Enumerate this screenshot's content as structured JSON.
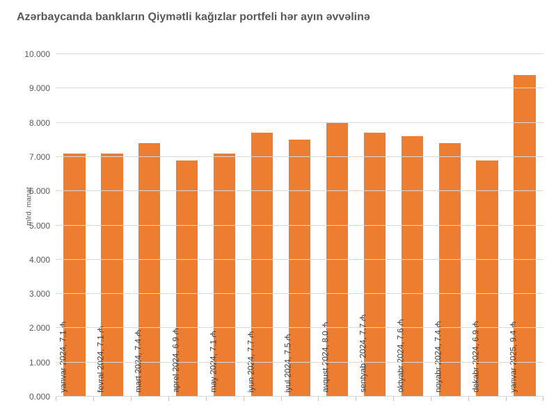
{
  "chart": {
    "type": "bar",
    "title": "Azərbaycanda bankların Qiymətli kağızlar portfeli hər ayın əvvəlinə",
    "title_fontsize": 16,
    "title_color": "#595959",
    "y_axis_label": "mlrd. manat",
    "label_fontsize": 10.5,
    "label_color": "#595959",
    "ylim": [
      0,
      10
    ],
    "yticks": [
      0,
      1,
      2,
      3,
      4,
      5,
      6,
      7,
      8,
      9,
      10
    ],
    "ytick_labels": [
      "0.000",
      "1.000",
      "2.000",
      "3.000",
      "4.000",
      "5.000",
      "6.000",
      "7.000",
      "8.000",
      "9.000",
      "10.000"
    ],
    "tick_fontsize": 12,
    "tick_color": "#595959",
    "background_color": "#ffffff",
    "grid_color": "#d9d9d9",
    "axis_color": "#bfbfbf",
    "bar_color": "#ed7d31",
    "bar_width": 0.58,
    "bar_label_color": "#404040",
    "bar_label_fontsize": 12,
    "categories": [
      "yanvar 2024",
      "fevral 2024",
      "mart 2024",
      "aprel 2024",
      "may 2024",
      "iyun 2024",
      "iyul 2024",
      "avqust 2024",
      "sentyabr 2024",
      "oktyabr 2024",
      "noyabr 2024",
      "dekabr 2024",
      "yanvar 2025"
    ],
    "values": [
      7.1,
      7.1,
      7.4,
      6.9,
      7.1,
      7.7,
      7.5,
      8.0,
      7.7,
      7.6,
      7.4,
      6.9,
      9.4
    ],
    "bar_labels": [
      "yanvar 2024, 7.1 ₼",
      "fevral 2024, 7.1 ₼",
      "mart 2024, 7.4 ₼",
      "aprel 2024, 6.9 ₼",
      "may 2024, 7.1 ₼",
      "iyun 2024, 7.7 ₼",
      "iyul 2024, 7.5 ₼",
      "avqust 2024, 8.0 ₼",
      "sentyabr 2024, 7.7 ₼",
      "oktyabr 2024, 7.6 ₼",
      "noyabr 2024, 7.4 ₼",
      "dekabr 2024, 6.9 ₼",
      "yanvar 2025, 9.4 ₼"
    ]
  }
}
